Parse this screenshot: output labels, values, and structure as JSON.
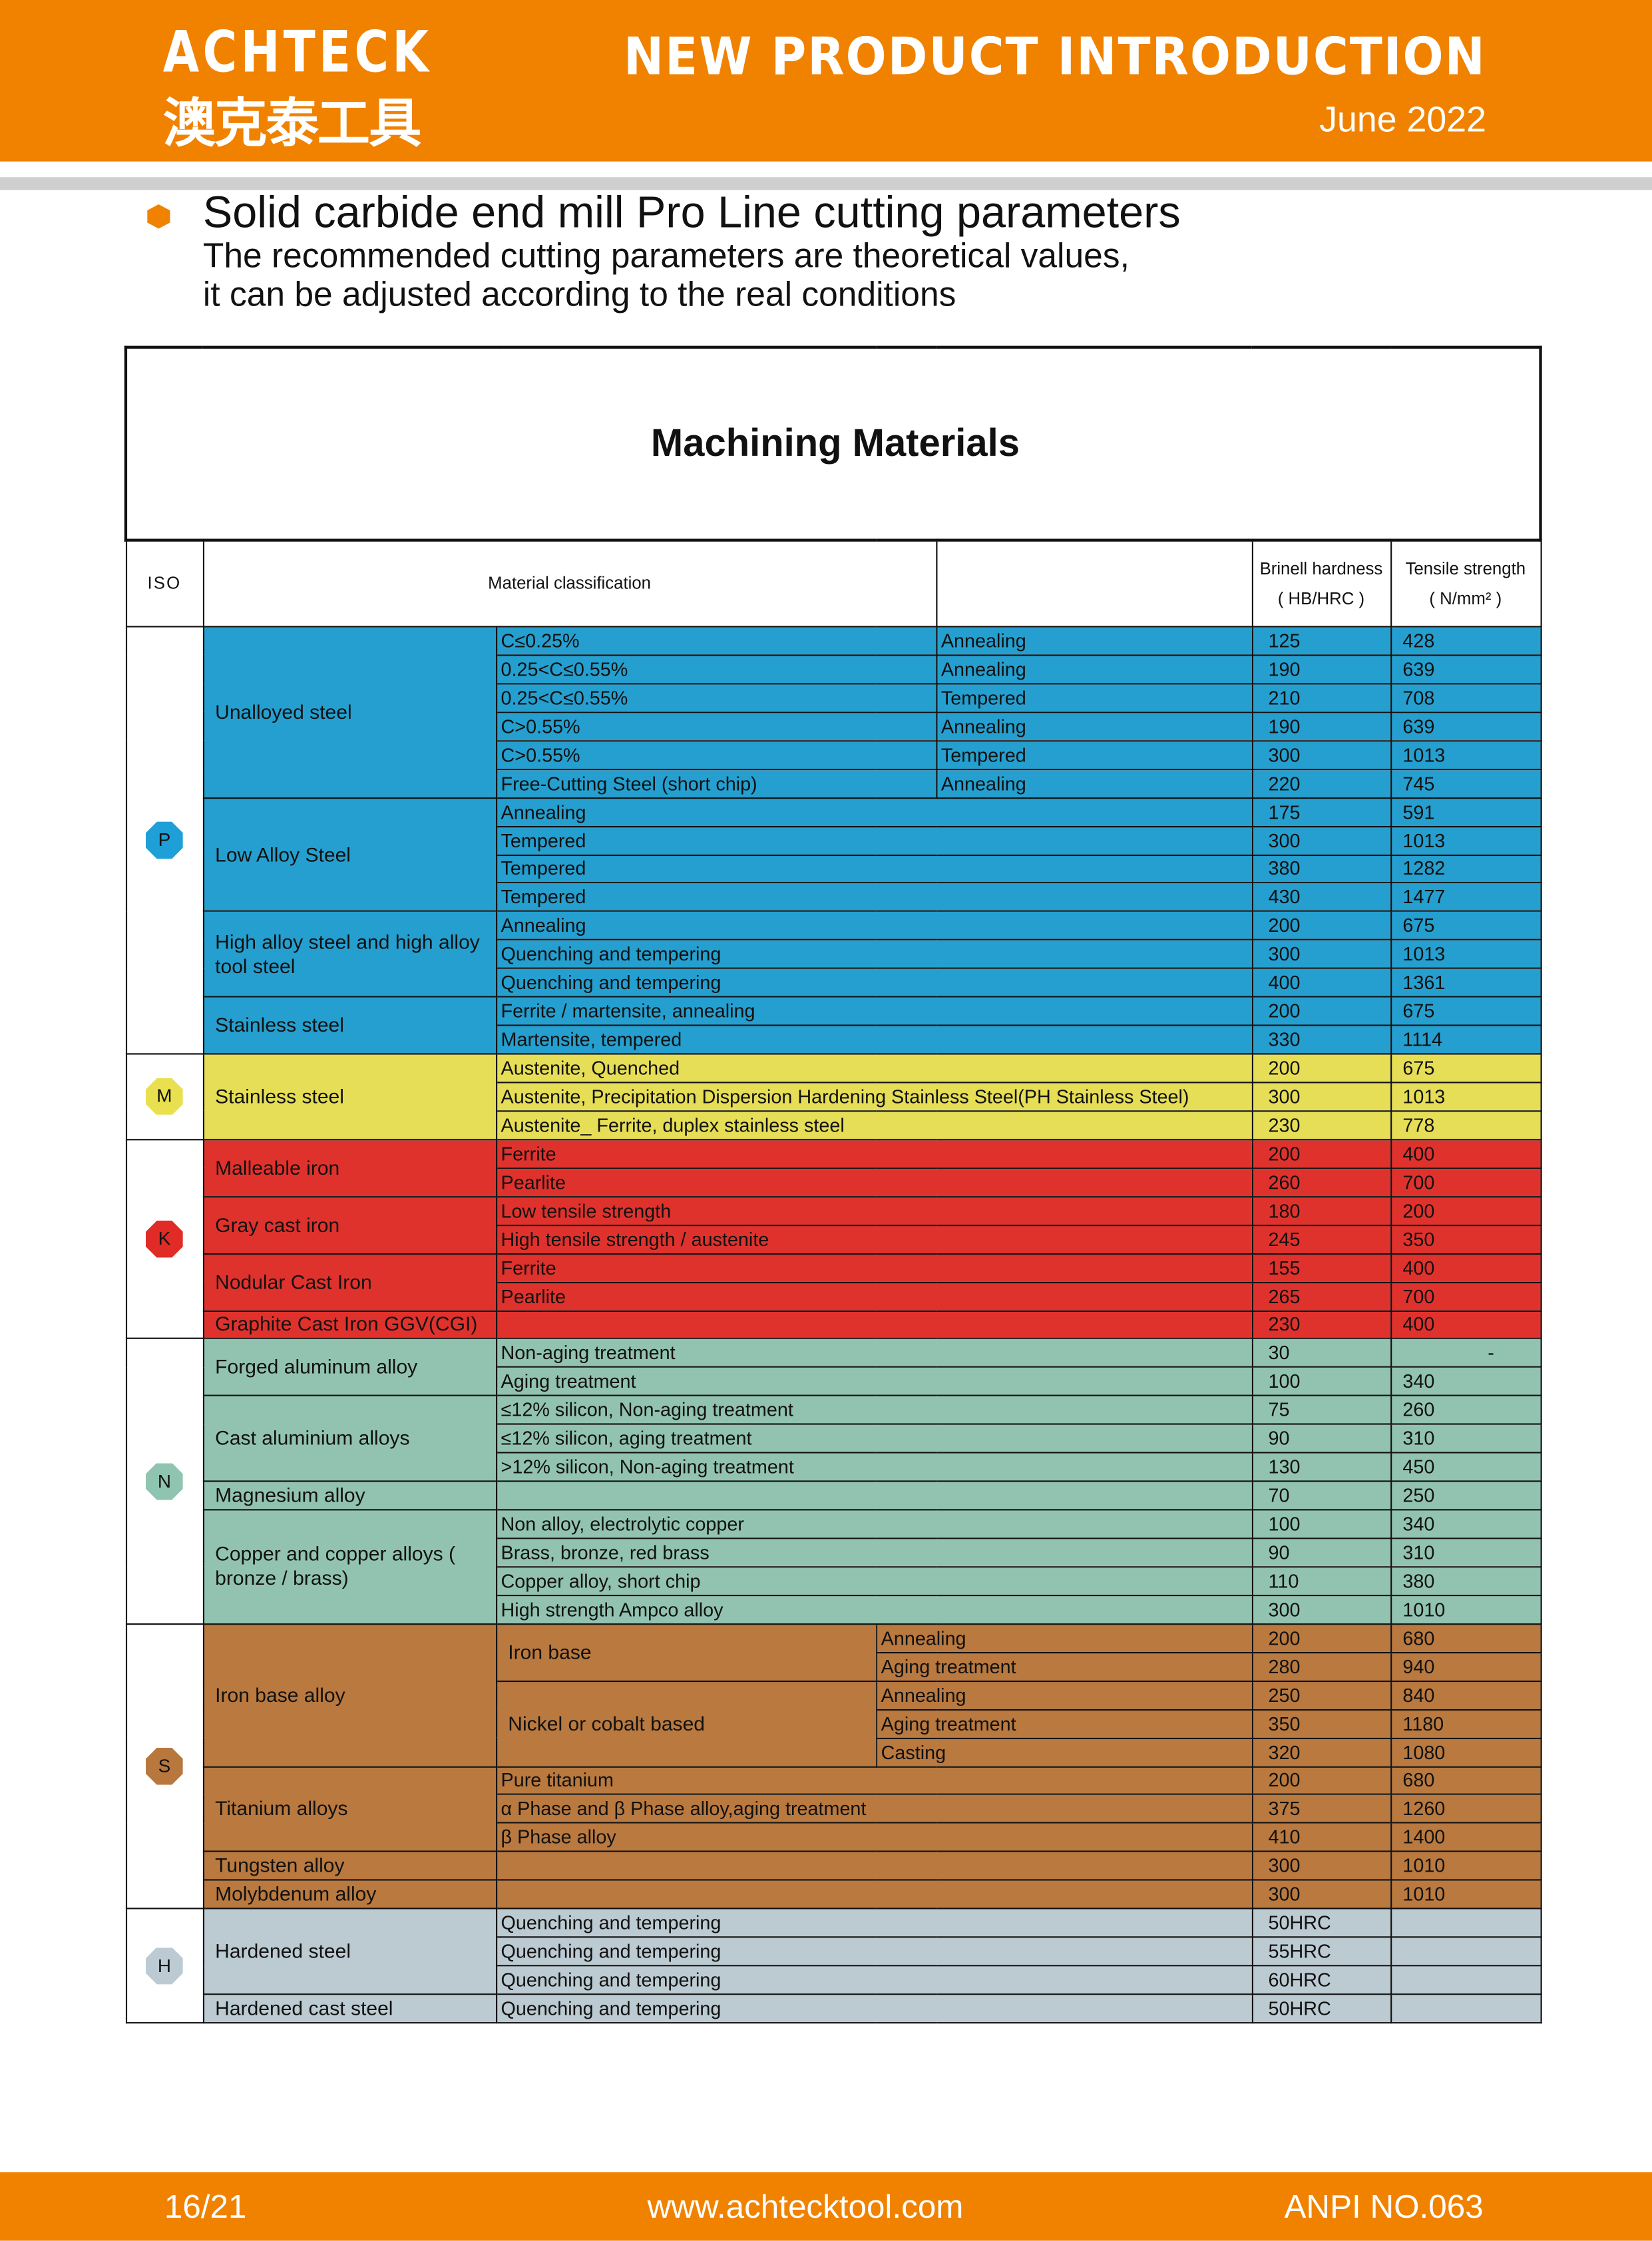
{
  "header": {
    "logo_en": "ACHTECK",
    "logo_cn": "澳克泰工具",
    "title": "NEW PRODUCT INTRODUCTION",
    "date": "June 2022"
  },
  "intro": {
    "heading": "Solid carbide end mill Pro Line cutting parameters",
    "line1": "The recommended cutting parameters are theoretical values,",
    "line2": "it can be adjusted according to the real conditions"
  },
  "table": {
    "title": "Machining Materials",
    "headers": {
      "iso": "ISO",
      "classification": "Material classification",
      "brinell_1": "Brinell hardness",
      "brinell_2": "( HB/HRC )",
      "tensile_1": "Tensile strength",
      "tensile_2": "( N/mm² )"
    },
    "sections": [
      {
        "iso": "P",
        "color": "#259fcf",
        "badge_color": "#1e9fd8",
        "groups": [
          {
            "name": "Unalloyed steel",
            "rows": [
              {
                "condition": "C≤0.25%",
                "treatment": "Annealing",
                "hb": "125",
                "ts": "428"
              },
              {
                "condition": "0.25<C≤0.55%",
                "treatment": "Annealing",
                "hb": "190",
                "ts": "639"
              },
              {
                "condition": "0.25<C≤0.55%",
                "treatment": "Tempered",
                "hb": "210",
                "ts": "708"
              },
              {
                "condition": "C>0.55%",
                "treatment": "Annealing",
                "hb": "190",
                "ts": "639"
              },
              {
                "condition": "C>0.55%",
                "treatment": "Tempered",
                "hb": "300",
                "ts": "1013"
              },
              {
                "condition": "Free-Cutting Steel (short chip)",
                "treatment": "Annealing",
                "hb": "220",
                "ts": "745"
              }
            ]
          },
          {
            "name": "Low Alloy Steel",
            "rows": [
              {
                "treatment": "Annealing",
                "hb": "175",
                "ts": "591"
              },
              {
                "treatment": "Tempered",
                "hb": "300",
                "ts": "1013"
              },
              {
                "treatment": "Tempered",
                "hb": "380",
                "ts": "1282"
              },
              {
                "treatment": "Tempered",
                "hb": "430",
                "ts": "1477"
              }
            ]
          },
          {
            "name": "High alloy steel and high alloy tool steel",
            "rows": [
              {
                "treatment": "Annealing",
                "hb": "200",
                "ts": "675"
              },
              {
                "treatment": "Quenching and tempering",
                "hb": "300",
                "ts": "1013"
              },
              {
                "treatment": "Quenching and tempering",
                "hb": "400",
                "ts": "1361"
              }
            ]
          },
          {
            "name": "Stainless steel",
            "rows": [
              {
                "treatment": "Ferrite / martensite, annealing",
                "hb": "200",
                "ts": "675"
              },
              {
                "treatment": "Martensite, tempered",
                "hb": "330",
                "ts": "1114"
              }
            ]
          }
        ]
      },
      {
        "iso": "M",
        "color": "#e6de56",
        "badge_color": "#e9e04f",
        "groups": [
          {
            "name": "Stainless steel",
            "rows": [
              {
                "treatment": "Austenite, Quenched",
                "hb": "200",
                "ts": "675"
              },
              {
                "treatment": "Austenite, Precipitation Dispersion Hardening Stainless Steel(PH Stainless Steel)",
                "hb": "300",
                "ts": "1013"
              },
              {
                "treatment": "Austenite_ Ferrite, duplex stainless steel",
                "hb": "230",
                "ts": "778"
              }
            ]
          }
        ]
      },
      {
        "iso": "K",
        "color": "#e0322d",
        "badge_color": "#e02b27",
        "groups": [
          {
            "name": "Malleable iron",
            "rows": [
              {
                "treatment": "Ferrite",
                "hb": "200",
                "ts": "400"
              },
              {
                "treatment": "Pearlite",
                "hb": "260",
                "ts": "700"
              }
            ]
          },
          {
            "name": "Gray cast iron",
            "rows": [
              {
                "treatment": "Low tensile strength",
                "hb": "180",
                "ts": "200"
              },
              {
                "treatment": "High tensile strength / austenite",
                "hb": "245",
                "ts": "350"
              }
            ]
          },
          {
            "name": "Nodular Cast Iron",
            "rows": [
              {
                "treatment": "Ferrite",
                "hb": "155",
                "ts": "400"
              },
              {
                "treatment": "Pearlite",
                "hb": "265",
                "ts": "700"
              }
            ]
          },
          {
            "name": "Graphite Cast Iron  GGV(CGI)",
            "rows": [
              {
                "treatment": "",
                "hb": "230",
                "ts": "400"
              }
            ]
          }
        ]
      },
      {
        "iso": "N",
        "color": "#92c3b1",
        "badge_color": "#8fc4b0",
        "groups": [
          {
            "name": "Forged aluminum alloy",
            "rows": [
              {
                "treatment": "Non-aging treatment",
                "hb": "30",
                "ts": "-"
              },
              {
                "treatment": "Aging treatment",
                "hb": "100",
                "ts": "340"
              }
            ]
          },
          {
            "name": "Cast aluminium alloys",
            "rows": [
              {
                "treatment": "≤12% silicon, Non-aging treatment",
                "hb": "75",
                "ts": "260"
              },
              {
                "treatment": "≤12% silicon,  aging treatment",
                "hb": "90",
                "ts": "310"
              },
              {
                "treatment": ">12% silicon, Non-aging treatment",
                "hb": "130",
                "ts": "450"
              }
            ]
          },
          {
            "name": "Magnesium alloy",
            "rows": [
              {
                "treatment": "",
                "hb": "70",
                "ts": "250"
              }
            ]
          },
          {
            "name": "Copper and copper alloys ( bronze / brass)",
            "rows": [
              {
                "treatment": "Non alloy, electrolytic copper",
                "hb": "100",
                "ts": "340"
              },
              {
                "treatment": "Brass, bronze, red brass",
                "hb": "90",
                "ts": "310"
              },
              {
                "treatment": "Copper alloy, short chip",
                "hb": "110",
                "ts": "380"
              },
              {
                "treatment": "High strength Ampco alloy",
                "hb": "300",
                "ts": "1010"
              }
            ]
          }
        ]
      },
      {
        "iso": "S",
        "color": "#b9793f",
        "badge_color": "#b8773c",
        "groups": [
          {
            "name": "Iron base alloy",
            "subgroups": [
              {
                "name": "Iron base",
                "rows": [
                  {
                    "treatment": "Annealing",
                    "hb": "200",
                    "ts": "680"
                  },
                  {
                    "treatment": "Aging treatment",
                    "hb": "280",
                    "ts": "940"
                  }
                ]
              },
              {
                "name": "Nickel or cobalt based",
                "rows": [
                  {
                    "treatment": "Annealing",
                    "hb": "250",
                    "ts": "840"
                  },
                  {
                    "treatment": "Aging treatment",
                    "hb": "350",
                    "ts": "1180"
                  },
                  {
                    "treatment": "Casting",
                    "hb": "320",
                    "ts": "1080"
                  }
                ]
              }
            ]
          },
          {
            "name": "Titanium alloys",
            "rows": [
              {
                "treatment": "Pure titanium",
                "hb": "200",
                "ts": "680"
              },
              {
                "treatment": "α Phase and β Phase alloy,aging treatment",
                "hb": "375",
                "ts": "1260"
              },
              {
                "treatment": "β Phase alloy",
                "hb": "410",
                "ts": "1400"
              }
            ]
          },
          {
            "name": "Tungsten alloy",
            "rows": [
              {
                "treatment": "",
                "hb": "300",
                "ts": "1010"
              }
            ]
          },
          {
            "name": "Molybdenum alloy",
            "rows": [
              {
                "treatment": "",
                "hb": "300",
                "ts": "1010"
              }
            ]
          }
        ]
      },
      {
        "iso": "H",
        "color": "#bccad2",
        "badge_color": "#bccbd3",
        "groups": [
          {
            "name": "Hardened steel",
            "rows": [
              {
                "treatment": "Quenching and tempering",
                "hb": "50HRC",
                "ts": ""
              },
              {
                "treatment": "Quenching and tempering",
                "hb": "55HRC",
                "ts": ""
              },
              {
                "treatment": "Quenching and tempering",
                "hb": "60HRC",
                "ts": ""
              }
            ]
          },
          {
            "name": "Hardened cast steel",
            "rows": [
              {
                "treatment": "Quenching and tempering",
                "hb": "50HRC",
                "ts": ""
              }
            ]
          }
        ]
      }
    ]
  },
  "footer": {
    "page": "16/21",
    "website": "www.achtecktool.com",
    "doc_no": "ANPI NO.063"
  },
  "colors": {
    "brand_orange": "#f08200",
    "grey_bar": "#cfcfcf"
  }
}
